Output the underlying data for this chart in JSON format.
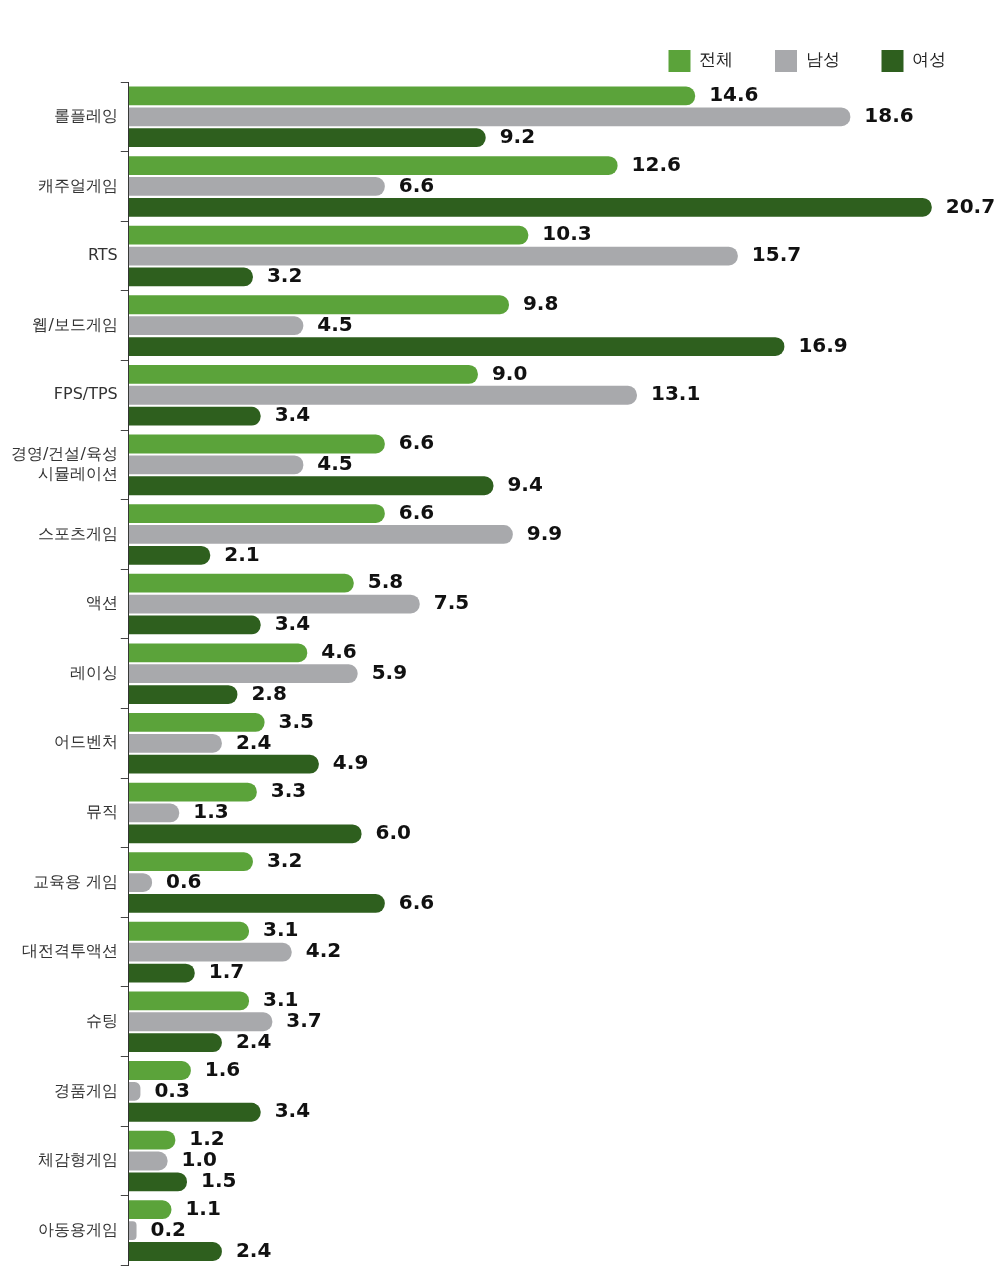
{
  "chart_data": {
    "type": "bar",
    "orientation": "horizontal",
    "tick_labels": "y",
    "legend": "top right",
    "categories": [
      "롤플레잉",
      "캐주얼게임",
      "RTS",
      "웹/보드게임",
      "FPS/TPS",
      "경영/건설/육성\n시뮬레이션",
      "스포츠게임",
      "액션",
      "레이싱",
      "어드벤처",
      "뮤직",
      "교육용 게임",
      "대전격투액션",
      "슈팅",
      "경품게임",
      "체감형게임",
      "아동용게임"
    ],
    "series": [
      {
        "name": "전체",
        "color": "#5ba33a",
        "values": [
          14.6,
          12.6,
          10.3,
          9.8,
          9.0,
          6.6,
          6.6,
          5.8,
          4.6,
          3.5,
          3.3,
          3.2,
          3.1,
          3.1,
          1.6,
          1.2,
          1.1
        ],
        "value_labels": [
          "14.6",
          "12.6",
          "10.3",
          "9.8",
          "9.0",
          "6.6",
          "6.6",
          "5.8",
          "4.6",
          "3.5",
          "3.3",
          "3.2",
          "3.1",
          "3.1",
          "1.6",
          "1.2",
          "1.1"
        ]
      },
      {
        "name": "남성",
        "color": "#a8a9ac",
        "values": [
          18.6,
          6.6,
          15.7,
          4.5,
          13.1,
          4.5,
          9.9,
          7.5,
          5.9,
          2.4,
          1.3,
          0.6,
          4.2,
          3.7,
          0.3,
          1.0,
          0.2
        ],
        "value_labels": [
          "18.6",
          "6.6",
          "15.7",
          "4.5",
          "13.1",
          "4.5",
          "9.9",
          "7.5",
          "5.9",
          "2.4",
          "1.3",
          "0.6",
          "4.2",
          "3.7",
          "0.3",
          "1.0",
          "0.2"
        ]
      },
      {
        "name": "여성",
        "color": "#2e5f1e",
        "values": [
          9.2,
          20.7,
          3.2,
          16.9,
          3.4,
          9.4,
          2.1,
          3.4,
          2.8,
          4.9,
          6.0,
          6.6,
          1.7,
          2.4,
          3.4,
          1.5,
          2.4
        ],
        "value_labels": [
          "9.2",
          "20.7",
          "3.2",
          "16.9",
          "3.4",
          "9.4",
          "2.1",
          "3.4",
          "2.8",
          "4.9",
          "6.0",
          "6.6",
          "1.7",
          "2.4",
          "3.4",
          "1.5",
          "2.4"
        ]
      }
    ]
  }
}
